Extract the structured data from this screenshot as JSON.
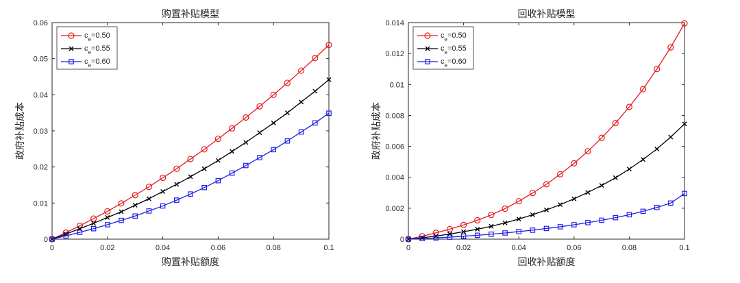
{
  "chart_data": [
    {
      "type": "line",
      "title": "购置补贴模型",
      "xlabel": "购置补贴额度",
      "ylabel": "政府补贴成本",
      "xlim": [
        0,
        0.1
      ],
      "ylim": [
        0,
        0.06
      ],
      "xticks": [
        0,
        0.02,
        0.04,
        0.06,
        0.08,
        0.1
      ],
      "xtick_labels": [
        "0",
        "0.02",
        "0.04",
        "0.06",
        "0.08",
        "0.1"
      ],
      "yticks": [
        0,
        0.01,
        0.02,
        0.03,
        0.04,
        0.05,
        0.06
      ],
      "ytick_labels": [
        "0",
        "0.01",
        "0.02",
        "0.03",
        "0.04",
        "0.05",
        "0.06"
      ],
      "legend_position": "top-left",
      "x": [
        0,
        0.005,
        0.01,
        0.015,
        0.02,
        0.025,
        0.03,
        0.035,
        0.04,
        0.045,
        0.05,
        0.055,
        0.06,
        0.065,
        0.07,
        0.075,
        0.08,
        0.085,
        0.09,
        0.095,
        0.1
      ],
      "series": [
        {
          "name": "c_e=0.50",
          "label_main": "c",
          "label_sub": "e",
          "label_value": "=0.50",
          "color": "#e8191c",
          "marker": "circle",
          "values": [
            0,
            0.0018,
            0.0037,
            0.0057,
            0.0077,
            0.0099,
            0.0122,
            0.0145,
            0.017,
            0.0195,
            0.0222,
            0.0249,
            0.0278,
            0.0307,
            0.0337,
            0.0368,
            0.04,
            0.0433,
            0.0467,
            0.0502,
            0.0538
          ]
        },
        {
          "name": "c_e=0.55",
          "label_main": "c",
          "label_sub": "e",
          "label_value": "=0.55",
          "color": "#000000",
          "marker": "x",
          "values": [
            0,
            0.0014,
            0.0029,
            0.0044,
            0.006,
            0.0076,
            0.0094,
            0.0112,
            0.0132,
            0.0152,
            0.0173,
            0.0195,
            0.0218,
            0.0243,
            0.0268,
            0.0295,
            0.0322,
            0.035,
            0.038,
            0.041,
            0.0442
          ]
        },
        {
          "name": "c_e=0.60",
          "label_main": "c",
          "label_sub": "e",
          "label_value": "=0.60",
          "color": "#1f1fe6",
          "marker": "square",
          "values": [
            0,
            0.0009,
            0.0019,
            0.0029,
            0.004,
            0.0052,
            0.0064,
            0.0078,
            0.0092,
            0.0108,
            0.0125,
            0.0143,
            0.0162,
            0.0183,
            0.0204,
            0.0226,
            0.0248,
            0.0272,
            0.0297,
            0.0322,
            0.0349
          ]
        }
      ]
    },
    {
      "type": "line",
      "title": "回收补贴模型",
      "xlabel": "回收补贴额度",
      "ylabel": "政府补贴成本",
      "xlim": [
        0,
        0.1
      ],
      "ylim": [
        0,
        0.014
      ],
      "xticks": [
        0,
        0.02,
        0.04,
        0.06,
        0.08,
        0.1
      ],
      "xtick_labels": [
        "0",
        "0.02",
        "0.04",
        "0.06",
        "0.08",
        "0.1"
      ],
      "yticks": [
        0,
        0.002,
        0.004,
        0.006,
        0.008,
        0.01,
        0.012,
        0.014
      ],
      "ytick_labels": [
        "0",
        "0.002",
        "0.004",
        "0.006",
        "0.008",
        "0.01",
        "0.012",
        "0.014"
      ],
      "legend_position": "top-left",
      "x": [
        0,
        0.005,
        0.01,
        0.015,
        0.02,
        0.025,
        0.03,
        0.035,
        0.04,
        0.045,
        0.05,
        0.055,
        0.06,
        0.065,
        0.07,
        0.075,
        0.08,
        0.085,
        0.09,
        0.095,
        0.1
      ],
      "series": [
        {
          "name": "c_e=0.50",
          "label_main": "c",
          "label_sub": "e",
          "label_value": "=0.50",
          "color": "#e8191c",
          "marker": "circle",
          "values": [
            0,
            0.00019,
            0.00041,
            0.00065,
            0.00092,
            0.00122,
            0.00157,
            0.00197,
            0.00245,
            0.00298,
            0.00355,
            0.0042,
            0.0049,
            0.00568,
            0.00655,
            0.0075,
            0.00855,
            0.0097,
            0.011,
            0.0124,
            0.01395
          ]
        },
        {
          "name": "c_e=0.55",
          "label_main": "c",
          "label_sub": "e",
          "label_value": "=0.55",
          "color": "#000000",
          "marker": "x",
          "values": [
            0,
            9e-05,
            0.0002,
            0.00033,
            0.00048,
            0.00064,
            0.00083,
            0.00105,
            0.0013,
            0.00158,
            0.00189,
            0.00223,
            0.00261,
            0.00302,
            0.00347,
            0.00397,
            0.00453,
            0.00515,
            0.00583,
            0.0066,
            0.00745
          ]
        },
        {
          "name": "c_e=0.60",
          "label_main": "c",
          "label_sub": "e",
          "label_value": "=0.60",
          "color": "#1f1fe6",
          "marker": "square",
          "values": [
            0,
            4e-05,
            8e-05,
            0.00013,
            0.00019,
            0.00025,
            0.00032,
            0.0004,
            0.00049,
            0.00058,
            0.00069,
            0.0008,
            0.00093,
            0.00107,
            0.00122,
            0.00139,
            0.00158,
            0.0018,
            0.00205,
            0.00233,
            0.00295
          ]
        }
      ]
    }
  ]
}
